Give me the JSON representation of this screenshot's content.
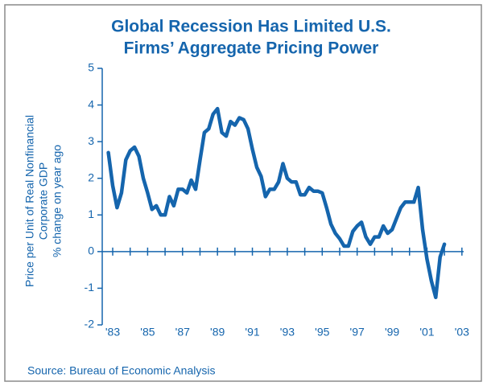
{
  "chart_data": {
    "type": "line",
    "title": [
      "Global Recession Has Limited U.S.",
      "Firms’ Aggregate Pricing Power"
    ],
    "ylabel": [
      "Price per Unit of Real Nonfinancial",
      "Corporate  GDP",
      "% change on year ago"
    ],
    "source": "Source: Bureau of Economic Analysis",
    "color": "#1565ad",
    "x": [
      1982.75,
      1983.0,
      1983.25,
      1983.5,
      1983.75,
      1984.0,
      1984.25,
      1984.5,
      1984.75,
      1985.0,
      1985.25,
      1985.5,
      1985.75,
      1986.0,
      1986.25,
      1986.5,
      1986.75,
      1987.0,
      1987.25,
      1987.5,
      1987.75,
      1988.0,
      1988.25,
      1988.5,
      1988.75,
      1989.0,
      1989.25,
      1989.5,
      1989.75,
      1990.0,
      1990.25,
      1990.5,
      1990.75,
      1991.0,
      1991.25,
      1991.5,
      1991.75,
      1992.0,
      1992.25,
      1992.5,
      1992.75,
      1993.0,
      1993.25,
      1993.5,
      1993.75,
      1994.0,
      1994.25,
      1994.5,
      1994.75,
      1995.0,
      1995.25,
      1995.5,
      1995.75,
      1996.0,
      1996.25,
      1996.5,
      1996.75,
      1997.0,
      1997.25,
      1997.5,
      1997.75,
      1998.0,
      1998.25,
      1998.5,
      1998.75,
      1999.0,
      1999.25,
      1999.5,
      1999.75,
      2000.0,
      2000.25,
      2000.5,
      2000.75,
      2001.0,
      2001.25,
      2001.5,
      2001.75,
      2002.0
    ],
    "values": [
      2.7,
      1.8,
      1.2,
      1.6,
      2.5,
      2.75,
      2.85,
      2.6,
      2.0,
      1.6,
      1.15,
      1.25,
      1.0,
      1.0,
      1.5,
      1.25,
      1.7,
      1.7,
      1.6,
      1.95,
      1.7,
      2.5,
      3.25,
      3.35,
      3.75,
      3.9,
      3.25,
      3.15,
      3.55,
      3.45,
      3.65,
      3.6,
      3.35,
      2.8,
      2.3,
      2.05,
      1.5,
      1.7,
      1.7,
      1.9,
      2.4,
      2.0,
      1.9,
      1.9,
      1.55,
      1.55,
      1.75,
      1.65,
      1.65,
      1.6,
      1.2,
      0.75,
      0.5,
      0.35,
      0.15,
      0.15,
      0.55,
      0.7,
      0.8,
      0.4,
      0.2,
      0.4,
      0.4,
      0.7,
      0.5,
      0.6,
      0.9,
      1.2,
      1.35,
      1.35,
      1.35,
      1.75,
      0.6,
      -0.2,
      -0.8,
      -1.25,
      -0.15,
      0.2
    ],
    "xlim": [
      1982.4,
      2003.1
    ],
    "ylim": [
      -2,
      5
    ],
    "yticks": [
      -2,
      -1,
      0,
      1,
      2,
      3,
      4,
      5
    ],
    "xticks": [
      {
        "value": 1983,
        "label": "'83"
      },
      {
        "value": 1985,
        "label": "'85"
      },
      {
        "value": 1987,
        "label": "'87"
      },
      {
        "value": 1989,
        "label": "'89"
      },
      {
        "value": 1991,
        "label": "'91"
      },
      {
        "value": 1993,
        "label": "'93"
      },
      {
        "value": 1995,
        "label": "'95"
      },
      {
        "value": 1997,
        "label": "'97"
      },
      {
        "value": 1999,
        "label": "'99"
      },
      {
        "value": 2001,
        "label": "'01"
      },
      {
        "value": 2003,
        "label": "'03"
      }
    ],
    "xminor_ticks": [
      1984,
      1986,
      1988,
      1990,
      1992,
      1994,
      1996,
      1998,
      2000,
      2002
    ]
  }
}
